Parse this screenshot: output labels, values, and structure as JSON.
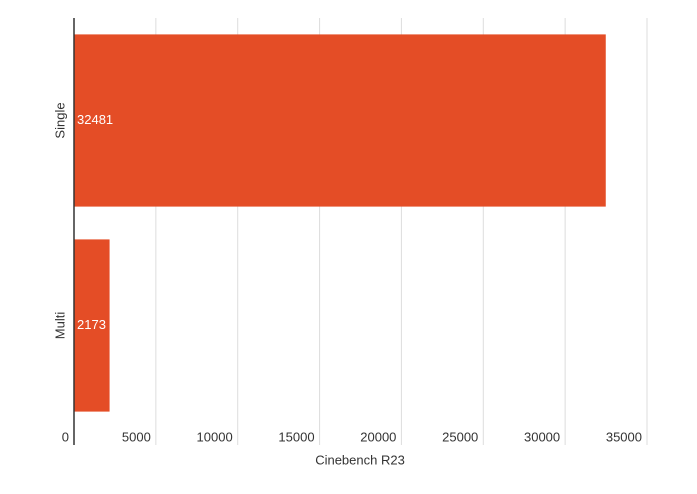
{
  "chart_data": {
    "type": "bar",
    "orientation": "horizontal",
    "x_label": "Cinebench R23",
    "categories": [
      "Single",
      "Multi"
    ],
    "values": [
      32481,
      2173
    ],
    "color": "#e44d26",
    "xlim": [
      0,
      35000
    ],
    "xticks": [
      0,
      5000,
      10000,
      15000,
      20000,
      25000,
      30000,
      35000
    ],
    "grid": true
  }
}
